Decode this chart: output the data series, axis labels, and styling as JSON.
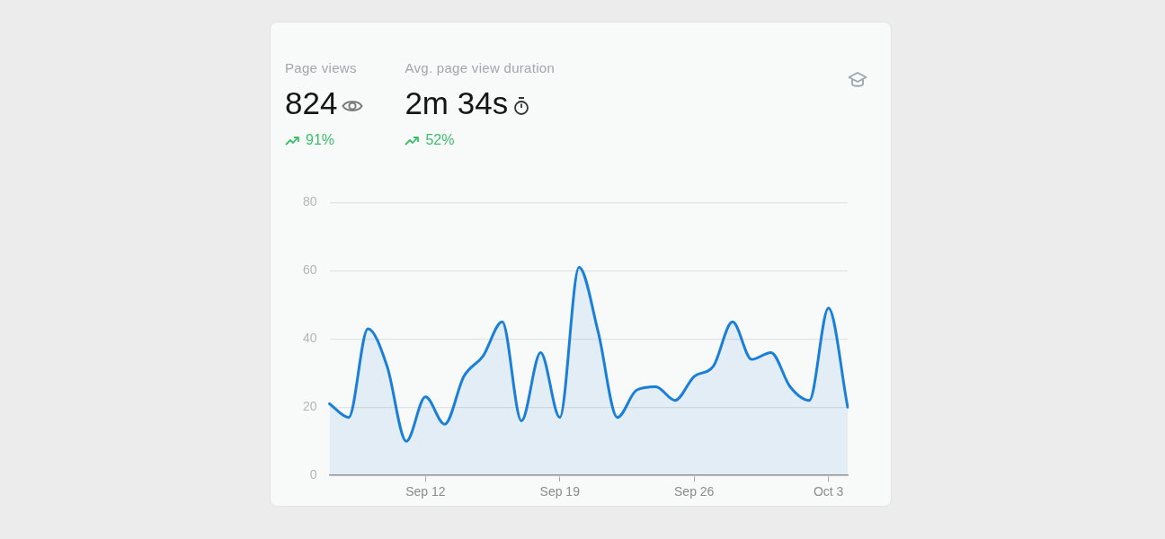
{
  "chart_data": [
    {
      "type": "other",
      "annotations": [
        "Page views",
        "824",
        "91%",
        "Avg. page view duration",
        "2m 34s",
        "52%"
      ]
    },
    {
      "type": "area",
      "categories": [
        null,
        null,
        null,
        null,
        null,
        "Sep 12",
        null,
        null,
        null,
        null,
        null,
        null,
        "Sep 19",
        null,
        null,
        null,
        null,
        null,
        null,
        "Sep 26",
        null,
        null,
        null,
        null,
        null,
        null,
        "Oct 3",
        null
      ],
      "values": [
        21,
        17,
        43,
        32,
        10,
        23,
        15,
        29,
        35,
        45,
        16,
        36,
        17,
        61,
        42,
        17,
        25,
        26,
        22,
        29,
        32,
        45,
        34,
        36,
        26,
        22,
        49,
        20
      ],
      "color": "#1a7fd8",
      "ylim": [
        0,
        80
      ],
      "yticks": [
        0,
        20,
        40,
        60,
        80
      ],
      "grid": "y",
      "marker": "none"
    }
  ]
}
